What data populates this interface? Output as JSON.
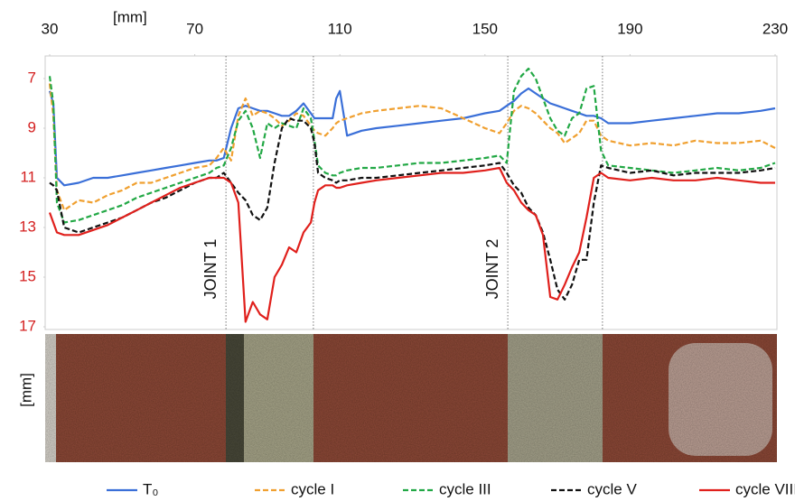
{
  "chart_data": {
    "type": "line",
    "xlabel": "[mm]",
    "ylabel": "[mm]",
    "xlim": [
      30,
      230
    ],
    "xticks": [
      30,
      70,
      110,
      150,
      190,
      230
    ],
    "ylim": [
      7,
      17
    ],
    "yticks": [
      7,
      9,
      11,
      13,
      15,
      17
    ],
    "y_inverted": true,
    "x_axis_position": "top",
    "ytick_color": "#d42020",
    "grid": false,
    "vlines": [
      78.6,
      102.7,
      156.3,
      182.4
    ],
    "annotations": [
      "JOINT 1",
      "JOINT 2"
    ],
    "legend": "bottom",
    "x": [
      30,
      31,
      32,
      34,
      38,
      42,
      46,
      50,
      54,
      58,
      62,
      66,
      70,
      74,
      76,
      78,
      80,
      82,
      84,
      86,
      88,
      90,
      92,
      94,
      96,
      98,
      100,
      102,
      103,
      104,
      106,
      108,
      109,
      110,
      112,
      116,
      120,
      126,
      132,
      138,
      144,
      150,
      154,
      156,
      158,
      160,
      162,
      164,
      166,
      168,
      170,
      172,
      174,
      176,
      178,
      180,
      182,
      184,
      190,
      196,
      202,
      208,
      214,
      220,
      226,
      230
    ],
    "series": [
      {
        "name": "T₀",
        "color": "#3a6fd8",
        "dashed": false,
        "values": [
          7.5,
          8.0,
          11.0,
          11.3,
          11.2,
          11.0,
          11.0,
          10.9,
          10.8,
          10.7,
          10.6,
          10.5,
          10.4,
          10.3,
          10.3,
          10.2,
          9.0,
          8.2,
          8.1,
          8.2,
          8.3,
          8.3,
          8.4,
          8.5,
          8.5,
          8.3,
          8.0,
          8.4,
          8.6,
          8.6,
          8.6,
          8.6,
          7.8,
          7.5,
          9.3,
          9.1,
          9.0,
          8.9,
          8.8,
          8.7,
          8.6,
          8.4,
          8.3,
          8.1,
          7.9,
          7.6,
          7.4,
          7.6,
          7.8,
          8.0,
          8.1,
          8.2,
          8.3,
          8.4,
          8.5,
          8.5,
          8.6,
          8.8,
          8.8,
          8.7,
          8.6,
          8.5,
          8.4,
          8.4,
          8.3,
          8.2
        ]
      },
      {
        "name": "cycle I",
        "color": "#f0a030",
        "dashed": true,
        "values": [
          7.2,
          8.5,
          11.5,
          12.3,
          11.9,
          12.0,
          11.7,
          11.5,
          11.2,
          11.2,
          11.0,
          10.8,
          10.6,
          10.5,
          10.2,
          9.8,
          10.3,
          8.5,
          7.8,
          8.5,
          8.3,
          8.4,
          8.6,
          8.9,
          8.7,
          8.4,
          8.5,
          8.9,
          9.1,
          9.2,
          9.3,
          9.0,
          8.8,
          8.7,
          8.6,
          8.4,
          8.3,
          8.2,
          8.1,
          8.2,
          8.6,
          9.0,
          9.2,
          8.8,
          8.3,
          8.1,
          8.2,
          8.4,
          8.7,
          9.0,
          9.2,
          9.6,
          9.4,
          9.2,
          8.7,
          8.7,
          9.3,
          9.5,
          9.7,
          9.6,
          9.7,
          9.5,
          9.6,
          9.6,
          9.5,
          9.8
        ]
      },
      {
        "name": "cycle III",
        "color": "#22a845",
        "dashed": true,
        "values": [
          6.9,
          8.0,
          12.0,
          12.8,
          12.7,
          12.5,
          12.3,
          12.1,
          11.8,
          11.6,
          11.4,
          11.2,
          11.0,
          10.8,
          10.6,
          10.5,
          9.8,
          8.7,
          8.3,
          9.0,
          10.2,
          8.8,
          9.0,
          8.8,
          8.9,
          9.0,
          8.2,
          8.6,
          9.5,
          10.5,
          10.8,
          10.9,
          10.9,
          10.8,
          10.7,
          10.6,
          10.6,
          10.5,
          10.4,
          10.4,
          10.3,
          10.2,
          10.1,
          10.4,
          7.5,
          6.9,
          6.6,
          7.0,
          7.8,
          8.6,
          9.1,
          9.3,
          8.6,
          8.4,
          7.4,
          7.3,
          9.9,
          10.5,
          10.6,
          10.7,
          10.8,
          10.7,
          10.6,
          10.7,
          10.6,
          10.4
        ]
      },
      {
        "name": "cycle V",
        "color": "#111111",
        "dashed": true,
        "values": [
          11.2,
          11.3,
          11.5,
          13.0,
          13.2,
          13.0,
          12.8,
          12.6,
          12.3,
          12.0,
          11.8,
          11.5,
          11.2,
          11.0,
          11.0,
          10.8,
          11.2,
          11.6,
          11.9,
          12.5,
          12.7,
          12.2,
          10.4,
          9.0,
          8.6,
          8.7,
          8.7,
          9.0,
          9.6,
          10.8,
          11.0,
          11.1,
          11.2,
          11.1,
          11.1,
          11.0,
          11.0,
          10.9,
          10.8,
          10.7,
          10.6,
          10.5,
          10.4,
          10.8,
          11.3,
          11.6,
          12.2,
          12.5,
          13.2,
          14.3,
          15.5,
          15.9,
          15.3,
          14.3,
          14.3,
          12.0,
          10.5,
          10.6,
          10.8,
          10.7,
          10.9,
          10.8,
          10.8,
          10.8,
          10.7,
          10.6
        ]
      },
      {
        "name": "cycle VIII",
        "color": "#e0201c",
        "dashed": false,
        "values": [
          12.4,
          12.8,
          13.2,
          13.3,
          13.3,
          13.1,
          12.9,
          12.6,
          12.3,
          12.0,
          11.7,
          11.4,
          11.2,
          11.0,
          11.0,
          11.0,
          11.2,
          12.0,
          16.8,
          16.0,
          16.5,
          16.7,
          15.0,
          14.5,
          13.8,
          14.0,
          13.2,
          12.8,
          12.0,
          11.5,
          11.3,
          11.3,
          11.4,
          11.4,
          11.3,
          11.2,
          11.1,
          11.0,
          10.9,
          10.8,
          10.8,
          10.7,
          10.6,
          11.2,
          11.5,
          12.0,
          12.3,
          12.5,
          13.3,
          15.8,
          15.9,
          15.3,
          14.6,
          14.0,
          12.6,
          11.0,
          10.8,
          11.0,
          11.1,
          11.0,
          11.1,
          11.1,
          11.0,
          11.1,
          11.2,
          11.2
        ]
      }
    ]
  }
}
